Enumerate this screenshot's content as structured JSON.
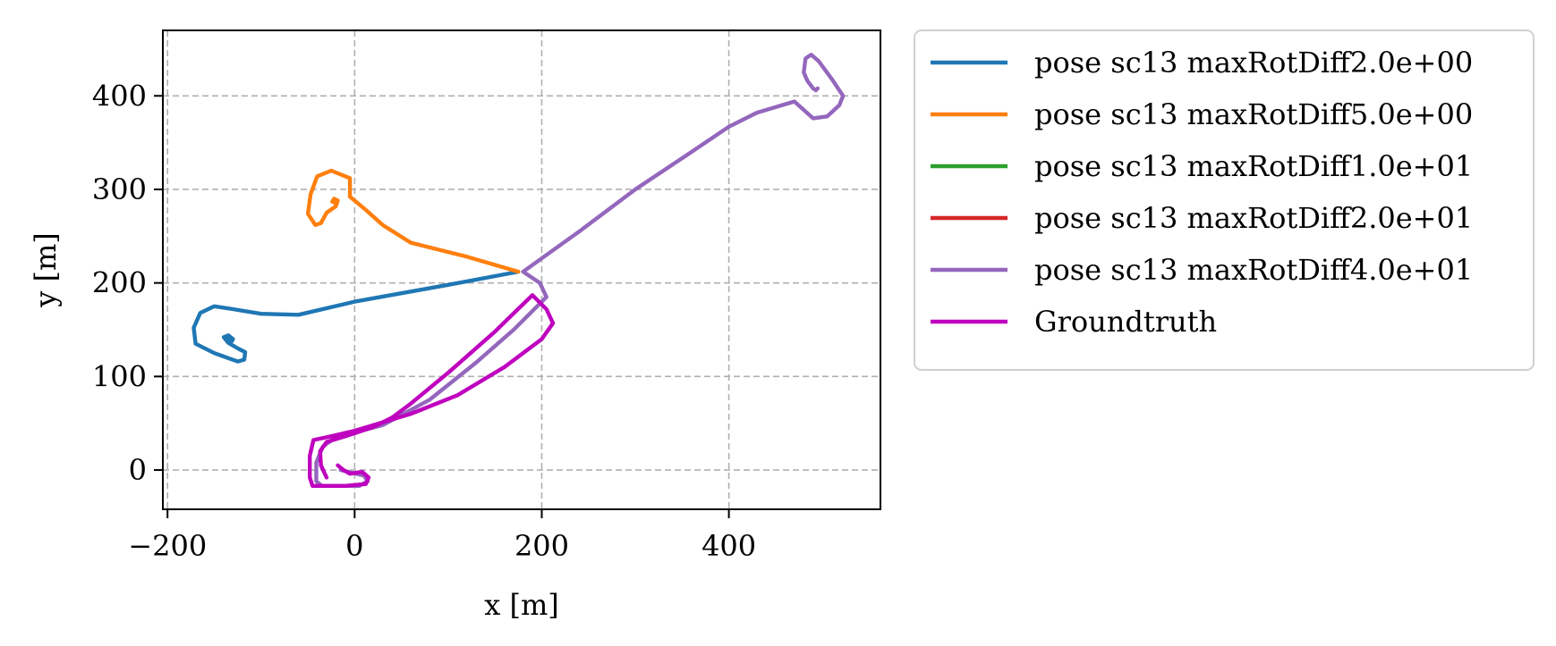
{
  "chart_data": {
    "type": "line",
    "title": "",
    "xlabel": "x [m]",
    "ylabel": "y [m]",
    "xlim": [
      -205,
      562
    ],
    "ylim": [
      -42,
      470
    ],
    "xticks": [
      -200,
      0,
      200,
      400
    ],
    "xtick_labels": [
      "−200",
      "0",
      "200",
      "400"
    ],
    "yticks": [
      0,
      100,
      200,
      300,
      400
    ],
    "ytick_labels": [
      "0",
      "100",
      "200",
      "300",
      "400"
    ],
    "grid": true,
    "legend_position": "outside-right-top",
    "series": [
      {
        "name": "pose sc13 maxRotDiff2.0e+00",
        "color": "#1f77b4",
        "points": [
          [
            175,
            212
          ],
          [
            100,
            198
          ],
          [
            0,
            180
          ],
          [
            -60,
            166
          ],
          [
            -100,
            167
          ],
          [
            -130,
            172
          ],
          [
            -150,
            175
          ],
          [
            -165,
            168
          ],
          [
            -172,
            152
          ],
          [
            -170,
            135
          ],
          [
            -150,
            125
          ],
          [
            -125,
            116
          ],
          [
            -118,
            118
          ],
          [
            -117,
            126
          ],
          [
            -125,
            130
          ],
          [
            -135,
            136
          ],
          [
            -140,
            142
          ],
          [
            -135,
            144
          ],
          [
            -130,
            140
          ],
          [
            -131,
            138
          ],
          [
            -136,
            141
          ]
        ]
      },
      {
        "name": "pose sc13 maxRotDiff5.0e+00",
        "color": "#ff7f0e",
        "points": [
          [
            175,
            212
          ],
          [
            120,
            228
          ],
          [
            60,
            243
          ],
          [
            30,
            262
          ],
          [
            12,
            278
          ],
          [
            0,
            288
          ],
          [
            -5,
            292
          ],
          [
            -5,
            312
          ],
          [
            -25,
            320
          ],
          [
            -40,
            314
          ],
          [
            -47,
            295
          ],
          [
            -50,
            274
          ],
          [
            -42,
            262
          ],
          [
            -36,
            264
          ],
          [
            -30,
            275
          ],
          [
            -20,
            282
          ],
          [
            -18,
            288
          ],
          [
            -22,
            290
          ],
          [
            -24,
            287
          ],
          [
            -20,
            285
          ]
        ]
      },
      {
        "name": "pose sc13 maxRotDiff1.0e+01",
        "color": "#2ca02c",
        "points": []
      },
      {
        "name": "pose sc13 maxRotDiff2.0e+01",
        "color": "#d62728",
        "points": []
      },
      {
        "name": "pose sc13 maxRotDiff4.0e+01",
        "color": "#9467bd",
        "points": [
          [
            -15,
            0
          ],
          [
            10,
            -6
          ],
          [
            14,
            -12
          ],
          [
            5,
            -17
          ],
          [
            -35,
            -17
          ],
          [
            -41,
            -12
          ],
          [
            -41,
            8
          ],
          [
            -34,
            25
          ],
          [
            -20,
            35
          ],
          [
            30,
            48
          ],
          [
            80,
            75
          ],
          [
            130,
            115
          ],
          [
            170,
            150
          ],
          [
            193,
            173
          ],
          [
            205,
            185
          ],
          [
            198,
            200
          ],
          [
            180,
            212
          ],
          [
            240,
            255
          ],
          [
            300,
            300
          ],
          [
            360,
            340
          ],
          [
            400,
            367
          ],
          [
            430,
            382
          ],
          [
            470,
            394
          ],
          [
            480,
            385
          ],
          [
            490,
            376
          ],
          [
            505,
            378
          ],
          [
            518,
            390
          ],
          [
            522,
            400
          ],
          [
            510,
            418
          ],
          [
            496,
            437
          ],
          [
            488,
            444
          ],
          [
            482,
            440
          ],
          [
            480,
            425
          ],
          [
            484,
            416
          ],
          [
            490,
            408
          ],
          [
            493,
            406
          ],
          [
            495,
            408
          ]
        ]
      },
      {
        "name": "Groundtruth",
        "color": "#bf00bf",
        "points": [
          [
            -18,
            5
          ],
          [
            -12,
            0
          ],
          [
            -5,
            -4
          ],
          [
            8,
            -2
          ],
          [
            15,
            -8
          ],
          [
            12,
            -15
          ],
          [
            -10,
            -17
          ],
          [
            -45,
            -17
          ],
          [
            -48,
            -8
          ],
          [
            -48,
            15
          ],
          [
            -44,
            32
          ],
          [
            -30,
            35
          ],
          [
            0,
            42
          ],
          [
            60,
            60
          ],
          [
            110,
            80
          ],
          [
            160,
            110
          ],
          [
            200,
            140
          ],
          [
            212,
            157
          ],
          [
            205,
            172
          ],
          [
            190,
            187
          ],
          [
            150,
            148
          ],
          [
            100,
            104
          ],
          [
            60,
            71
          ],
          [
            40,
            56
          ],
          [
            20,
            46
          ],
          [
            -10,
            36
          ],
          [
            -30,
            30
          ],
          [
            -37,
            20
          ],
          [
            -36,
            5
          ],
          [
            -30,
            -8
          ]
        ]
      }
    ]
  }
}
